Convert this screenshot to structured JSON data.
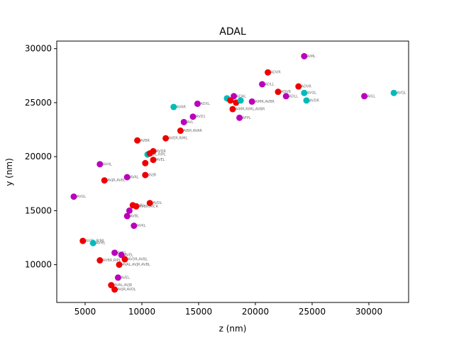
{
  "chart_data": {
    "type": "scatter",
    "title": "ADAL",
    "xlabel": "z (nm)",
    "ylabel": "y (nm)",
    "xlim": [
      2500,
      33500
    ],
    "ylim": [
      6500,
      30700
    ],
    "xticks": [
      5000,
      10000,
      15000,
      20000,
      25000,
      30000
    ],
    "yticks": [
      10000,
      15000,
      20000,
      25000,
      30000
    ],
    "grid": false,
    "colors": {
      "red": "#ee0000",
      "magenta": "#bb00bb",
      "cyan": "#00bbbb"
    },
    "points": [
      {
        "x": 24300,
        "y": 29300,
        "label": "AIML",
        "color": "magenta"
      },
      {
        "x": 21100,
        "y": 27800,
        "label": "ADVR",
        "color": "red"
      },
      {
        "x": 20600,
        "y": 26700,
        "label": "ADLL",
        "color": "magenta"
      },
      {
        "x": 23800,
        "y": 26500,
        "label": "ADVR",
        "color": "red"
      },
      {
        "x": 22000,
        "y": 26000,
        "label": "ADVR",
        "color": "red"
      },
      {
        "x": 22700,
        "y": 25600,
        "label": "ADLL",
        "color": "magenta"
      },
      {
        "x": 24300,
        "y": 25900,
        "label": "AVQL",
        "color": "cyan"
      },
      {
        "x": 24500,
        "y": 25200,
        "label": "AVDR",
        "color": "cyan"
      },
      {
        "x": 29600,
        "y": 25600,
        "label": "AIGL",
        "color": "magenta"
      },
      {
        "x": 32200,
        "y": 25900,
        "label": "AVQL",
        "color": "cyan"
      },
      {
        "x": 17500,
        "y": 25400,
        "label": "",
        "color": "cyan"
      },
      {
        "x": 18100,
        "y": 25600,
        "label": "ADAL",
        "color": "magenta"
      },
      {
        "x": 17800,
        "y": 25200,
        "label": "",
        "color": "red"
      },
      {
        "x": 18300,
        "y": 25000,
        "label": "",
        "color": "red"
      },
      {
        "x": 18700,
        "y": 25200,
        "label": "",
        "color": "cyan"
      },
      {
        "x": 19700,
        "y": 25100,
        "label": "AIMR,AVBR",
        "color": "magenta"
      },
      {
        "x": 18000,
        "y": 24400,
        "label": "AIMR,RIML,AVBR",
        "color": "red"
      },
      {
        "x": 18600,
        "y": 23600,
        "label": "AFPL",
        "color": "magenta"
      },
      {
        "x": 12800,
        "y": 24600,
        "label": "AVAR",
        "color": "cyan"
      },
      {
        "x": 14900,
        "y": 24900,
        "label": "ADXL",
        "color": "magenta"
      },
      {
        "x": 14500,
        "y": 23700,
        "label": "AVD1",
        "color": "magenta"
      },
      {
        "x": 13700,
        "y": 23200,
        "label": "AVL",
        "color": "magenta"
      },
      {
        "x": 13400,
        "y": 22400,
        "label": "AIBR,AVAR",
        "color": "red"
      },
      {
        "x": 12100,
        "y": 21700,
        "label": "AVER,RIML",
        "color": "red"
      },
      {
        "x": 9600,
        "y": 21500,
        "label": "AVBR",
        "color": "red"
      },
      {
        "x": 11000,
        "y": 20500,
        "label": "AVDR",
        "color": "red"
      },
      {
        "x": 10500,
        "y": 20200,
        "label": "AVL,RIPL",
        "color": "cyan"
      },
      {
        "x": 10700,
        "y": 20300,
        "label": "",
        "color": "red"
      },
      {
        "x": 11000,
        "y": 19700,
        "label": "AVEL",
        "color": "red"
      },
      {
        "x": 10300,
        "y": 19400,
        "label": "",
        "color": "red"
      },
      {
        "x": 6300,
        "y": 19300,
        "label": "AVHL",
        "color": "magenta"
      },
      {
        "x": 10300,
        "y": 18300,
        "label": "AVJR",
        "color": "red"
      },
      {
        "x": 8700,
        "y": 18100,
        "label": "AVAL",
        "color": "magenta"
      },
      {
        "x": 6700,
        "y": 17800,
        "label": "AVJR,AVEL",
        "color": "red"
      },
      {
        "x": 4000,
        "y": 16300,
        "label": "AVGL",
        "color": "magenta"
      },
      {
        "x": 10700,
        "y": 15700,
        "label": "AVDL",
        "color": "red"
      },
      {
        "x": 9200,
        "y": 15500,
        "label": "AVAL",
        "color": "red"
      },
      {
        "x": 9500,
        "y": 15400,
        "label": "AVBR,RICR",
        "color": "red"
      },
      {
        "x": 8900,
        "y": 15000,
        "label": "",
        "color": "magenta"
      },
      {
        "x": 8700,
        "y": 14500,
        "label": "AVBL",
        "color": "magenta"
      },
      {
        "x": 9300,
        "y": 13600,
        "label": "AVKL",
        "color": "magenta"
      },
      {
        "x": 4800,
        "y": 12200,
        "label": "AVDL,RIML",
        "color": "red"
      },
      {
        "x": 5700,
        "y": 12000,
        "label": "AVHL",
        "color": "cyan"
      },
      {
        "x": 7600,
        "y": 11100,
        "label": "AVKL",
        "color": "magenta"
      },
      {
        "x": 8200,
        "y": 10900,
        "label": "AVEL",
        "color": "magenta"
      },
      {
        "x": 8500,
        "y": 10500,
        "label": "AVDR,AVBL",
        "color": "red"
      },
      {
        "x": 6300,
        "y": 10400,
        "label": "AVBR,RIPL",
        "color": "red"
      },
      {
        "x": 8000,
        "y": 10000,
        "label": "AVAL,AVJR,AVBL",
        "color": "red"
      },
      {
        "x": 7900,
        "y": 8800,
        "label": "AVEL",
        "color": "magenta"
      },
      {
        "x": 7300,
        "y": 8100,
        "label": "AVAL,AVJR",
        "color": "red"
      },
      {
        "x": 7600,
        "y": 7700,
        "label": "AVJR,AVDL",
        "color": "red"
      }
    ]
  }
}
